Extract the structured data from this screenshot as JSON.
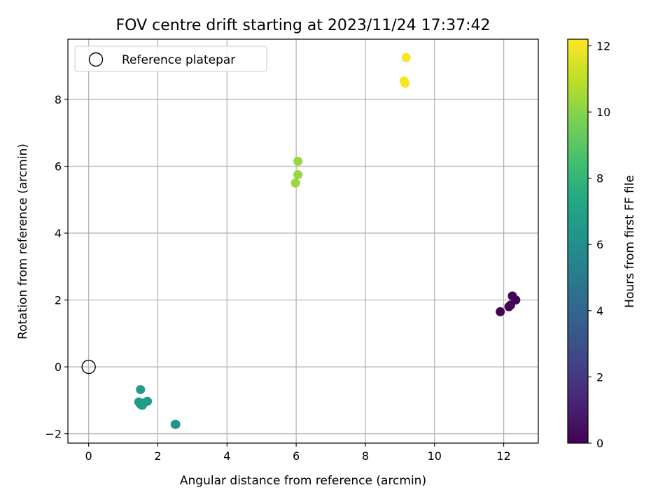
{
  "chart_data": {
    "type": "scatter",
    "title": "FOV centre drift starting at 2023/11/24 17:37:42",
    "xlabel": "Angular distance from reference (arcmin)",
    "ylabel": "Rotation from reference (arcmin)",
    "xlim": [
      -0.6,
      13.0
    ],
    "ylim": [
      -2.28,
      9.8
    ],
    "xticks": [
      0,
      2,
      4,
      6,
      8,
      10,
      12
    ],
    "yticks": [
      -2,
      0,
      2,
      4,
      6,
      8
    ],
    "grid": true,
    "legend": {
      "location": "upper-left",
      "entries": [
        "Reference platepar"
      ]
    },
    "reference_point": {
      "x": 0.0,
      "y": 0.0
    },
    "colorbar": {
      "label": "Hours from first FF file",
      "range": [
        0,
        12.2
      ],
      "ticks": [
        0,
        2,
        4,
        6,
        8,
        10,
        12
      ],
      "colormap": "viridis"
    },
    "points": [
      {
        "x": 11.9,
        "y": 1.65,
        "c": 0.05
      },
      {
        "x": 12.15,
        "y": 1.8,
        "c": 0.1
      },
      {
        "x": 12.2,
        "y": 1.85,
        "c": 0.1
      },
      {
        "x": 12.25,
        "y": 2.12,
        "c": 0.1
      },
      {
        "x": 12.35,
        "y": 2.0,
        "c": 0.15
      },
      {
        "x": 1.5,
        "y": -0.68,
        "c": 6.6
      },
      {
        "x": 1.45,
        "y": -1.05,
        "c": 6.6
      },
      {
        "x": 1.5,
        "y": -1.12,
        "c": 6.6
      },
      {
        "x": 1.55,
        "y": -1.15,
        "c": 6.6
      },
      {
        "x": 1.6,
        "y": -1.08,
        "c": 6.7
      },
      {
        "x": 1.7,
        "y": -1.03,
        "c": 6.7
      },
      {
        "x": 2.5,
        "y": -1.72,
        "c": 6.4
      },
      {
        "x": 2.52,
        "y": -1.72,
        "c": 6.4
      },
      {
        "x": 5.98,
        "y": 5.5,
        "c": 10.3
      },
      {
        "x": 6.05,
        "y": 5.75,
        "c": 10.3
      },
      {
        "x": 6.05,
        "y": 6.15,
        "c": 10.3
      },
      {
        "x": 9.12,
        "y": 8.55,
        "c": 12.1
      },
      {
        "x": 9.15,
        "y": 8.48,
        "c": 12.1
      },
      {
        "x": 9.18,
        "y": 9.25,
        "c": 12.1
      }
    ]
  }
}
